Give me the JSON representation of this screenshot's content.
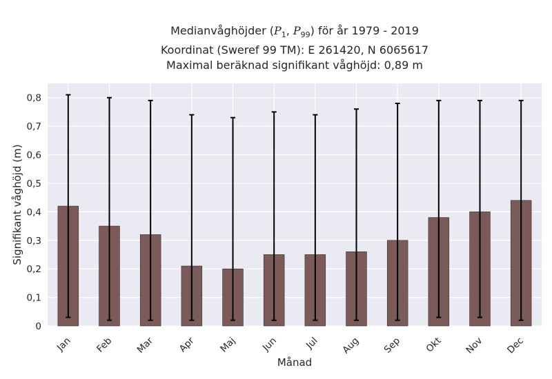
{
  "title": {
    "line1_prefix": "Medianvåghöjder (",
    "p_symbol": "P",
    "p1_sub": "1",
    "p99_sub": "99",
    "line1_suffix": ") för år 1979 - 2019",
    "line2": "Koordinat (Sweref 99 TM): E 261420, N 6065617",
    "line3": "Maximal beräknad signifikant våghöjd: 0,89 m"
  },
  "chart_data": {
    "type": "bar",
    "xlabel": "Månad",
    "ylabel": "Signifikant våghöjd (m)",
    "ylim": [
      0,
      0.85
    ],
    "yticks": [
      0,
      0.1,
      0.2,
      0.3,
      0.4,
      0.5,
      0.6,
      0.7,
      0.8
    ],
    "ytick_labels": [
      "0",
      "0,1",
      "0,2",
      "0,3",
      "0,4",
      "0,5",
      "0,6",
      "0,7",
      "0,8"
    ],
    "categories": [
      "Jan",
      "Feb",
      "Mar",
      "Apr",
      "Maj",
      "Jun",
      "Jul",
      "Aug",
      "Sep",
      "Okt",
      "Nov",
      "Dec"
    ],
    "values": [
      0.42,
      0.35,
      0.32,
      0.21,
      0.2,
      0.25,
      0.25,
      0.26,
      0.3,
      0.38,
      0.4,
      0.44
    ],
    "p1": [
      0.03,
      0.02,
      0.02,
      0.02,
      0.02,
      0.02,
      0.02,
      0.02,
      0.02,
      0.03,
      0.03,
      0.02
    ],
    "p99": [
      0.81,
      0.8,
      0.79,
      0.74,
      0.73,
      0.75,
      0.74,
      0.76,
      0.78,
      0.79,
      0.79,
      0.79
    ],
    "grid": true,
    "colors": {
      "bar": "#7b5a5a",
      "bar_edge": "#3a2a2a",
      "errorbar": "#000000",
      "plot_background": "#eaeaf2",
      "grid": "#ffffff"
    }
  }
}
